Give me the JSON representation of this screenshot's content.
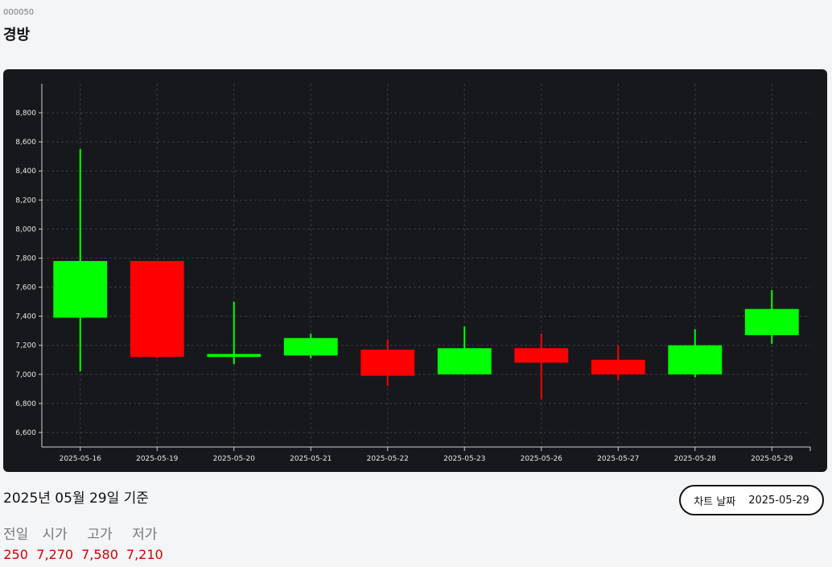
{
  "stock": {
    "code": "000050",
    "name": "경방"
  },
  "basis_text": "2025년 05월 29일 기준",
  "date_picker": {
    "label": "차트 날짜",
    "value": "2025-05-29"
  },
  "stats": [
    {
      "label": "전일",
      "value": "250"
    },
    {
      "label": "시가",
      "value": "7,270"
    },
    {
      "label": "고가",
      "value": "7,580"
    },
    {
      "label": "저가",
      "value": "7,210"
    }
  ],
  "colors": {
    "up": "#00ff00",
    "down": "#ff0000",
    "background": "#17181c",
    "text_up_down": "#d40000"
  },
  "chart_data": {
    "type": "candlestick",
    "title": "",
    "xlabel": "",
    "ylabel": "",
    "ylim": [
      6500,
      9000
    ],
    "yticks": [
      6600,
      6800,
      7000,
      7200,
      7400,
      7600,
      7800,
      8000,
      8200,
      8400,
      8600,
      8800
    ],
    "grid": true,
    "candles": [
      {
        "date": "2025-05-16",
        "open": 7390,
        "high": 8550,
        "low": 7020,
        "close": 7780
      },
      {
        "date": "2025-05-19",
        "open": 7780,
        "high": 7780,
        "low": 7110,
        "close": 7120
      },
      {
        "date": "2025-05-20",
        "open": 7120,
        "high": 7500,
        "low": 7070,
        "close": 7140
      },
      {
        "date": "2025-05-21",
        "open": 7130,
        "high": 7280,
        "low": 7110,
        "close": 7250
      },
      {
        "date": "2025-05-22",
        "open": 7170,
        "high": 7240,
        "low": 6920,
        "close": 6990
      },
      {
        "date": "2025-05-23",
        "open": 7000,
        "high": 7330,
        "low": 7000,
        "close": 7180
      },
      {
        "date": "2025-05-26",
        "open": 7180,
        "high": 7280,
        "low": 6830,
        "close": 7080
      },
      {
        "date": "2025-05-27",
        "open": 7100,
        "high": 7200,
        "low": 6960,
        "close": 7000
      },
      {
        "date": "2025-05-28",
        "open": 7000,
        "high": 7310,
        "low": 6980,
        "close": 7200
      },
      {
        "date": "2025-05-29",
        "open": 7270,
        "high": 7580,
        "low": 7210,
        "close": 7450
      }
    ]
  }
}
